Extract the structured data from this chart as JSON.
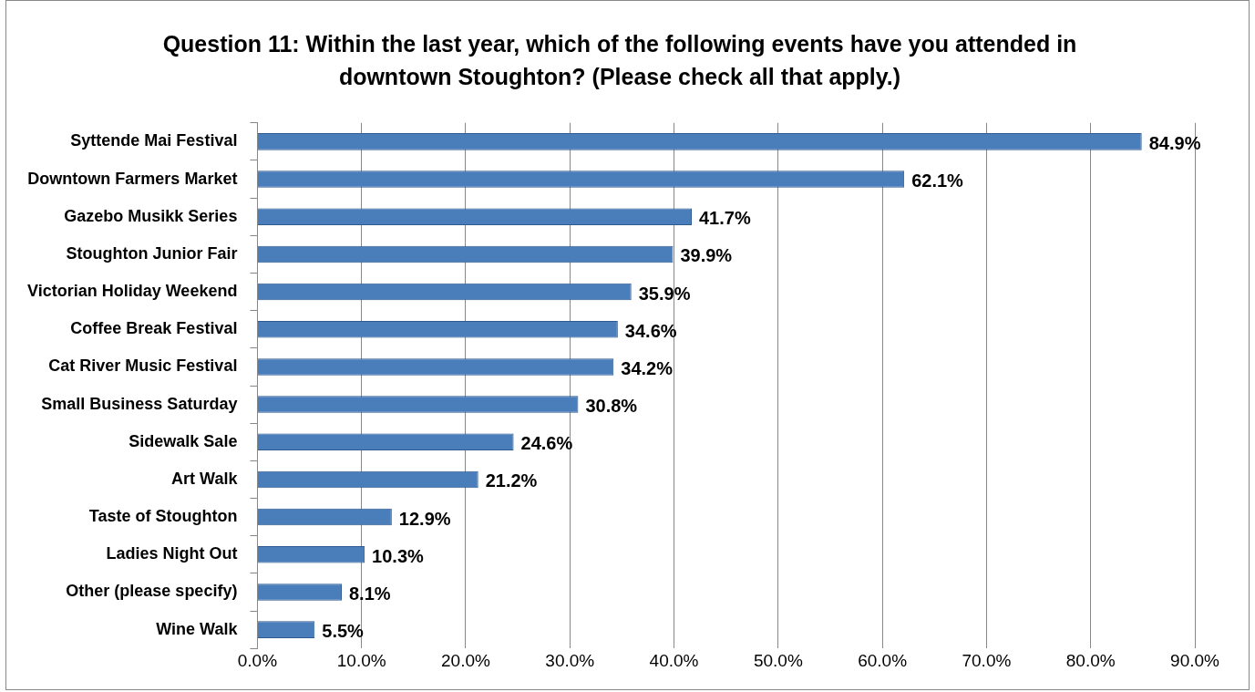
{
  "chart_data": {
    "type": "bar",
    "orientation": "horizontal",
    "title": "Question 11: Within the last year, which of the following events have you attended in downtown Stoughton? (Please check all that apply.)",
    "categories": [
      "Syttende Mai Festival",
      "Downtown Farmers Market",
      "Gazebo Musikk Series",
      "Stoughton Junior Fair",
      "Victorian Holiday Weekend",
      "Coffee Break Festival",
      "Cat River Music Festival",
      "Small Business Saturday",
      "Sidewalk Sale",
      "Art Walk",
      "Taste of Stoughton",
      "Ladies Night Out",
      "Other (please specify)",
      "Wine Walk"
    ],
    "values": [
      84.9,
      62.1,
      41.7,
      39.9,
      35.9,
      34.6,
      34.2,
      30.8,
      24.6,
      21.2,
      12.9,
      10.3,
      8.1,
      5.5
    ],
    "value_labels": [
      "84.9%",
      "62.1%",
      "41.7%",
      "39.9%",
      "35.9%",
      "34.6%",
      "34.2%",
      "30.8%",
      "24.6%",
      "21.2%",
      "12.9%",
      "10.3%",
      "8.1%",
      "5.5%"
    ],
    "color": "#4a7ebb",
    "xlim": [
      0,
      90
    ],
    "xticks": [
      {
        "value": 0,
        "label": "0.0%"
      },
      {
        "value": 10,
        "label": "10.0%"
      },
      {
        "value": 20,
        "label": "20.0%"
      },
      {
        "value": 30,
        "label": "30.0%"
      },
      {
        "value": 40,
        "label": "40.0%"
      },
      {
        "value": 50,
        "label": "50.0%"
      },
      {
        "value": 60,
        "label": "60.0%"
      },
      {
        "value": 70,
        "label": "70.0%"
      },
      {
        "value": 80,
        "label": "80.0%"
      },
      {
        "value": 90,
        "label": "90.0%"
      }
    ],
    "grid": "x",
    "legend": false
  }
}
